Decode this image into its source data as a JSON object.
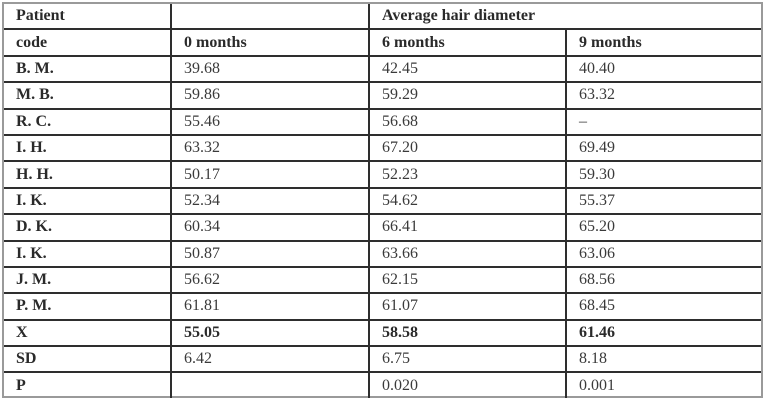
{
  "table": {
    "header_row_1": {
      "col0": "Patient",
      "col1": "",
      "group_label": "Average hair diameter"
    },
    "header_row_2": {
      "col0": "code",
      "col1": "0 months",
      "col2": "6 months",
      "col3": "9 months"
    },
    "rows": [
      {
        "code": "B. M.",
        "m0": "39.68",
        "m6": "42.45",
        "m9": "40.40"
      },
      {
        "code": "M. B.",
        "m0": "59.86",
        "m6": "59.29",
        "m9": "63.32"
      },
      {
        "code": "R. C.",
        "m0": "55.46",
        "m6": "56.68",
        "m9": "–"
      },
      {
        "code": "I. H.",
        "m0": "63.32",
        "m6": "67.20",
        "m9": "69.49"
      },
      {
        "code": "H. H.",
        "m0": "50.17",
        "m6": "52.23",
        "m9": "59.30"
      },
      {
        "code": "I. K.",
        "m0": "52.34",
        "m6": "54.62",
        "m9": "55.37"
      },
      {
        "code": "D. K.",
        "m0": "60.34",
        "m6": "66.41",
        "m9": "65.20"
      },
      {
        "code": "I. K.",
        "m0": "50.87",
        "m6": "63.66",
        "m9": "63.06"
      },
      {
        "code": "J. M.",
        "m0": "56.62",
        "m6": "62.15",
        "m9": "68.56"
      },
      {
        "code": "P. M.",
        "m0": "61.81",
        "m6": "61.07",
        "m9": "68.45"
      }
    ],
    "summary": {
      "mean": {
        "label": "X",
        "m0": "55.05",
        "m6": "58.58",
        "m9": "61.46"
      },
      "sd": {
        "label": "SD",
        "m0": "6.42",
        "m6": "6.75",
        "m9": "8.18"
      },
      "p": {
        "label": "P",
        "m0": "",
        "m6": "0.020",
        "m9": "0.001"
      }
    }
  }
}
